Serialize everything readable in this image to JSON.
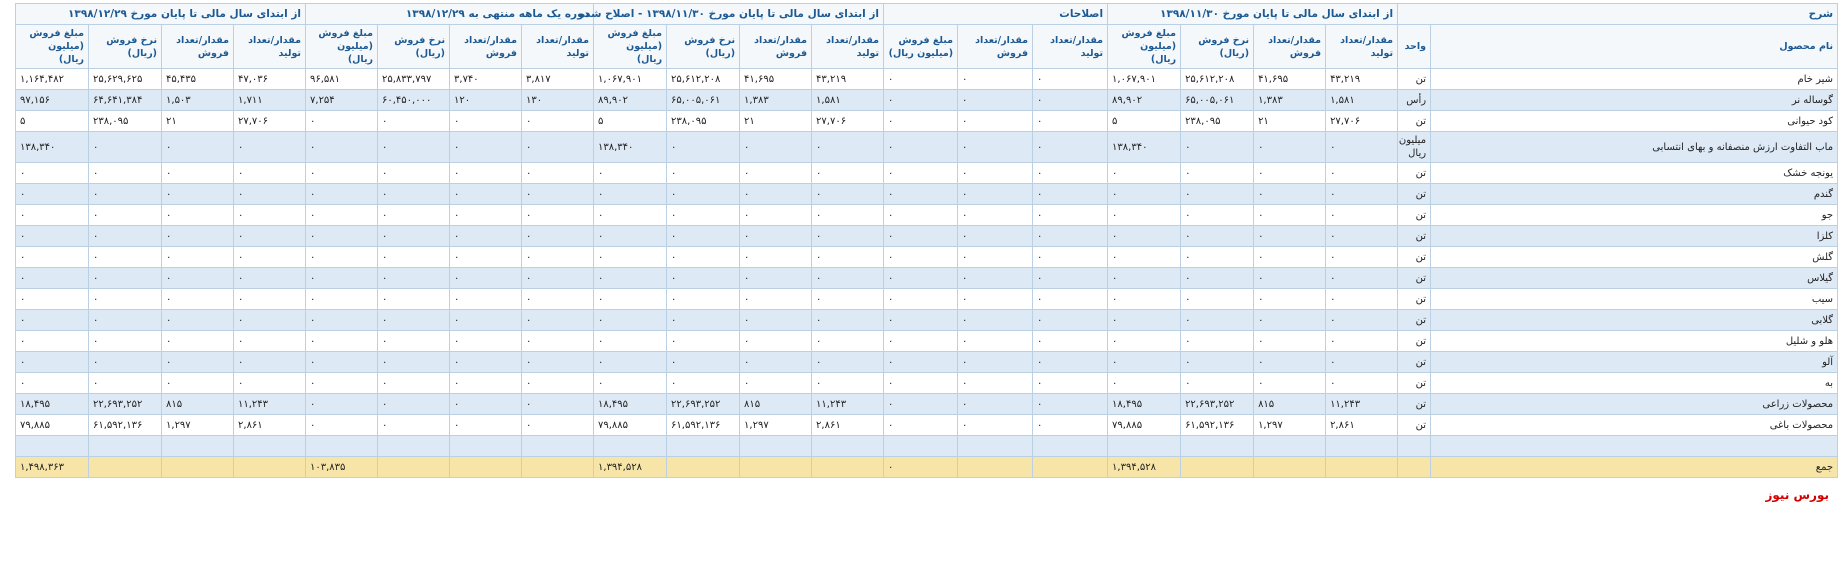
{
  "header": {
    "groups": [
      {
        "title": "شرح",
        "columns": [
          "نام محصول",
          "واحد"
        ]
      },
      {
        "title": "از ابتدای سال مالی تا پایان مورخ ۱۳۹۸/۱۱/۳۰",
        "columns": [
          "مقدار/تعداد تولید",
          "مقدار/تعداد فروش",
          "نرخ فروش (ریال)",
          "مبلغ فروش (میلیون ریال)"
        ]
      },
      {
        "title": "اصلاحات",
        "columns": [
          "مقدار/تعداد تولید",
          "مقدار/تعداد فروش",
          "مبلغ فروش (میلیون ریال)"
        ]
      },
      {
        "title": "از ابتدای سال مالی تا پایان مورخ ۱۳۹۸/۱۱/۳۰ - اصلاح شده",
        "columns": [
          "مقدار/تعداد تولید",
          "مقدار/تعداد فروش",
          "نرخ فروش (ریال)",
          "مبلغ فروش (میلیون ریال)"
        ]
      },
      {
        "title": "دوره یک ماهه منتهی به ۱۳۹۸/۱۲/۲۹",
        "columns": [
          "مقدار/تعداد تولید",
          "مقدار/تعداد فروش",
          "نرخ فروش (ریال)",
          "مبلغ فروش (میلیون ریال)"
        ]
      },
      {
        "title": "از ابتدای سال مالی تا پایان مورخ ۱۳۹۸/۱۲/۲۹",
        "columns": [
          "مقدار/تعداد تولید",
          "مقدار/تعداد فروش",
          "نرخ فروش (ریال)",
          "مبلغ فروش (میلیون ریال)"
        ]
      }
    ]
  },
  "table": {
    "rows": [
      {
        "name": "شیر خام",
        "unit": "تن",
        "cells": [
          "۴۳,۲۱۹",
          "۴۱,۶۹۵",
          "۲۵,۶۱۲,۲۰۸",
          "۱,۰۶۷,۹۰۱",
          "۰",
          "۰",
          "۰",
          "۴۳,۲۱۹",
          "۴۱,۶۹۵",
          "۲۵,۶۱۲,۲۰۸",
          "۱,۰۶۷,۹۰۱",
          "۳,۸۱۷",
          "۳,۷۴۰",
          "۲۵,۸۳۳,۷۹۷",
          "۹۶,۵۸۱",
          "۴۷,۰۳۶",
          "۴۵,۴۳۵",
          "۲۵,۶۲۹,۶۲۵",
          "۱,۱۶۴,۴۸۲"
        ]
      },
      {
        "name": "گوساله نر",
        "unit": "رأس",
        "cells": [
          "۱,۵۸۱",
          "۱,۳۸۳",
          "۶۵,۰۰۵,۰۶۱",
          "۸۹,۹۰۲",
          "۰",
          "۰",
          "۰",
          "۱,۵۸۱",
          "۱,۳۸۳",
          "۶۵,۰۰۵,۰۶۱",
          "۸۹,۹۰۲",
          "۱۳۰",
          "۱۲۰",
          "۶۰,۴۵۰,۰۰۰",
          "۷,۲۵۴",
          "۱,۷۱۱",
          "۱,۵۰۳",
          "۶۴,۶۴۱,۳۸۴",
          "۹۷,۱۵۶"
        ]
      },
      {
        "name": "کود حیوانی",
        "unit": "تن",
        "cells": [
          "۲۷,۷۰۶",
          "۲۱",
          "۲۳۸,۰۹۵",
          "۵",
          "۰",
          "۰",
          "۰",
          "۲۷,۷۰۶",
          "۲۱",
          "۲۳۸,۰۹۵",
          "۵",
          "۰",
          "۰",
          "۰",
          "۰",
          "۲۷,۷۰۶",
          "۲۱",
          "۲۳۸,۰۹۵",
          "۵"
        ]
      },
      {
        "name": "ماب التفاوت ارزش منصفانه و بهای انتسابی",
        "unit": "میلیون ریال",
        "cells": [
          "۰",
          "۰",
          "۰",
          "۱۳۸,۳۴۰",
          "۰",
          "۰",
          "۰",
          "۰",
          "۰",
          "۰",
          "۱۳۸,۳۴۰",
          "۰",
          "۰",
          "۰",
          "۰",
          "۰",
          "۰",
          "۰",
          "۱۳۸,۳۴۰"
        ]
      },
      {
        "name": "یونجه خشک",
        "unit": "تن",
        "cells": [
          "۰",
          "۰",
          "۰",
          "۰",
          "۰",
          "۰",
          "۰",
          "۰",
          "۰",
          "۰",
          "۰",
          "۰",
          "۰",
          "۰",
          "۰",
          "۰",
          "۰",
          "۰",
          "۰"
        ]
      },
      {
        "name": "گندم",
        "unit": "تن",
        "cells": [
          "۰",
          "۰",
          "۰",
          "۰",
          "۰",
          "۰",
          "۰",
          "۰",
          "۰",
          "۰",
          "۰",
          "۰",
          "۰",
          "۰",
          "۰",
          "۰",
          "۰",
          "۰",
          "۰"
        ]
      },
      {
        "name": "جو",
        "unit": "تن",
        "cells": [
          "۰",
          "۰",
          "۰",
          "۰",
          "۰",
          "۰",
          "۰",
          "۰",
          "۰",
          "۰",
          "۰",
          "۰",
          "۰",
          "۰",
          "۰",
          "۰",
          "۰",
          "۰",
          "۰"
        ]
      },
      {
        "name": "کلزا",
        "unit": "تن",
        "cells": [
          "۰",
          "۰",
          "۰",
          "۰",
          "۰",
          "۰",
          "۰",
          "۰",
          "۰",
          "۰",
          "۰",
          "۰",
          "۰",
          "۰",
          "۰",
          "۰",
          "۰",
          "۰",
          "۰"
        ]
      },
      {
        "name": "گلش",
        "unit": "تن",
        "cells": [
          "۰",
          "۰",
          "۰",
          "۰",
          "۰",
          "۰",
          "۰",
          "۰",
          "۰",
          "۰",
          "۰",
          "۰",
          "۰",
          "۰",
          "۰",
          "۰",
          "۰",
          "۰",
          "۰"
        ]
      },
      {
        "name": "گیلاس",
        "unit": "تن",
        "cells": [
          "۰",
          "۰",
          "۰",
          "۰",
          "۰",
          "۰",
          "۰",
          "۰",
          "۰",
          "۰",
          "۰",
          "۰",
          "۰",
          "۰",
          "۰",
          "۰",
          "۰",
          "۰",
          "۰"
        ]
      },
      {
        "name": "سیب",
        "unit": "تن",
        "cells": [
          "۰",
          "۰",
          "۰",
          "۰",
          "۰",
          "۰",
          "۰",
          "۰",
          "۰",
          "۰",
          "۰",
          "۰",
          "۰",
          "۰",
          "۰",
          "۰",
          "۰",
          "۰",
          "۰"
        ]
      },
      {
        "name": "گلابی",
        "unit": "تن",
        "cells": [
          "۰",
          "۰",
          "۰",
          "۰",
          "۰",
          "۰",
          "۰",
          "۰",
          "۰",
          "۰",
          "۰",
          "۰",
          "۰",
          "۰",
          "۰",
          "۰",
          "۰",
          "۰",
          "۰"
        ]
      },
      {
        "name": "هلو و شلیل",
        "unit": "تن",
        "cells": [
          "۰",
          "۰",
          "۰",
          "۰",
          "۰",
          "۰",
          "۰",
          "۰",
          "۰",
          "۰",
          "۰",
          "۰",
          "۰",
          "۰",
          "۰",
          "۰",
          "۰",
          "۰",
          "۰"
        ]
      },
      {
        "name": "آلو",
        "unit": "تن",
        "cells": [
          "۰",
          "۰",
          "۰",
          "۰",
          "۰",
          "۰",
          "۰",
          "۰",
          "۰",
          "۰",
          "۰",
          "۰",
          "۰",
          "۰",
          "۰",
          "۰",
          "۰",
          "۰",
          "۰"
        ]
      },
      {
        "name": "به",
        "unit": "تن",
        "cells": [
          "۰",
          "۰",
          "۰",
          "۰",
          "۰",
          "۰",
          "۰",
          "۰",
          "۰",
          "۰",
          "۰",
          "۰",
          "۰",
          "۰",
          "۰",
          "۰",
          "۰",
          "۰",
          "۰"
        ]
      },
      {
        "name": "محصولات زراعی",
        "unit": "تن",
        "cells": [
          "۱۱,۲۴۳",
          "۸۱۵",
          "۲۲,۶۹۳,۲۵۲",
          "۱۸,۴۹۵",
          "۰",
          "۰",
          "۰",
          "۱۱,۲۴۳",
          "۸۱۵",
          "۲۲,۶۹۳,۲۵۲",
          "۱۸,۴۹۵",
          "۰",
          "۰",
          "۰",
          "۰",
          "۱۱,۲۴۳",
          "۸۱۵",
          "۲۲,۶۹۳,۲۵۲",
          "۱۸,۴۹۵"
        ]
      },
      {
        "name": "محصولات باغی",
        "unit": "تن",
        "cells": [
          "۲,۸۶۱",
          "۱,۲۹۷",
          "۶۱,۵۹۲,۱۳۶",
          "۷۹,۸۸۵",
          "۰",
          "۰",
          "۰",
          "۲,۸۶۱",
          "۱,۲۹۷",
          "۶۱,۵۹۲,۱۳۶",
          "۷۹,۸۸۵",
          "۰",
          "۰",
          "۰",
          "۰",
          "۲,۸۶۱",
          "۱,۲۹۷",
          "۶۱,۵۹۲,۱۳۶",
          "۷۹,۸۸۵"
        ]
      },
      {
        "name": null,
        "unit": null,
        "cells": []
      }
    ],
    "total": {
      "name": "جمع",
      "cells": [
        null,
        null,
        null,
        "۱,۳۹۴,۵۲۸",
        null,
        null,
        "۰",
        null,
        null,
        null,
        "۱,۳۹۴,۵۲۸",
        null,
        null,
        null,
        "۱۰۳,۸۳۵",
        null,
        null,
        null,
        "۱,۴۹۸,۳۶۳"
      ]
    }
  },
  "footer": {
    "source": "بورس نیوز"
  }
}
